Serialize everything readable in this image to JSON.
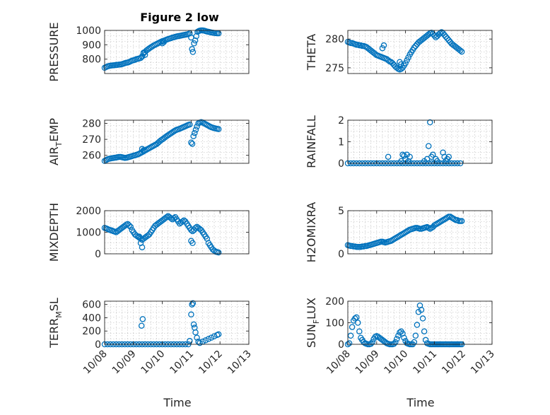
{
  "figure": {
    "title": "Figure 2 low",
    "x_axis_label": "Time",
    "x_tick_labels": [
      "10/08",
      "10/09",
      "10/10",
      "10/11",
      "10/12",
      "10/13"
    ]
  },
  "colors": {
    "marker": "#0072bd",
    "axes": "#262626",
    "grid": "#b8b8b8"
  },
  "chart_data": [
    {
      "type": "scatter",
      "ylabel": "PRESSURE",
      "ylabel_sub": "",
      "ylabel_tail": "",
      "ylim": [
        700,
        1000
      ],
      "yticks": [
        800,
        900,
        1000
      ],
      "xlim": [
        0,
        5
      ],
      "grid": true,
      "marker": "o",
      "x": [
        0.0,
        0.05,
        0.1,
        0.15,
        0.2,
        0.25,
        0.3,
        0.35,
        0.4,
        0.45,
        0.5,
        0.55,
        0.6,
        0.65,
        0.7,
        0.75,
        0.8,
        0.85,
        0.9,
        0.95,
        1.0,
        1.05,
        1.1,
        1.15,
        1.2,
        1.25,
        1.3,
        1.35,
        1.4,
        1.45,
        1.5,
        1.55,
        1.6,
        1.65,
        1.7,
        1.75,
        1.8,
        1.85,
        1.9,
        1.95,
        2.0,
        2.05,
        2.1,
        2.15,
        2.2,
        2.25,
        2.3,
        2.35,
        2.4,
        2.45,
        2.5,
        2.55,
        2.6,
        2.65,
        2.7,
        2.75,
        2.8,
        2.85,
        2.9,
        2.95,
        3.0,
        3.03,
        3.06,
        3.1,
        3.14,
        3.18,
        3.22,
        3.26,
        3.3,
        3.35,
        3.4,
        3.45,
        3.5,
        3.55,
        3.6,
        3.65,
        3.7,
        3.75,
        3.8,
        3.85,
        3.9,
        3.95,
        1.3,
        1.35,
        1.4,
        2.05,
        2.0
      ],
      "y": [
        740,
        745,
        750,
        752,
        755,
        756,
        757,
        758,
        760,
        760,
        762,
        763,
        765,
        768,
        772,
        775,
        776,
        780,
        785,
        790,
        792,
        795,
        800,
        802,
        805,
        808,
        818,
        840,
        850,
        860,
        868,
        875,
        882,
        888,
        895,
        900,
        905,
        910,
        915,
        920,
        925,
        928,
        932,
        936,
        940,
        943,
        946,
        950,
        952,
        955,
        958,
        960,
        962,
        964,
        966,
        968,
        970,
        972,
        975,
        980,
        950,
        870,
        850,
        910,
        930,
        960,
        990,
        995,
        998,
        1000,
        1000,
        998,
        995,
        992,
        990,
        988,
        985,
        984,
        982,
        981,
        980,
        980,
        820,
        845,
        830,
        918,
        910
      ]
    },
    {
      "type": "scatter",
      "ylabel": "THETA",
      "ylabel_sub": "",
      "ylabel_tail": "",
      "ylim": [
        274,
        281.5
      ],
      "yticks": [
        275,
        280
      ],
      "xlim": [
        0,
        5
      ],
      "grid": true,
      "marker": "o",
      "x": [
        0.0,
        0.05,
        0.1,
        0.15,
        0.2,
        0.25,
        0.3,
        0.35,
        0.4,
        0.45,
        0.5,
        0.55,
        0.6,
        0.65,
        0.7,
        0.75,
        0.8,
        0.85,
        0.9,
        0.95,
        1.0,
        1.05,
        1.1,
        1.15,
        1.2,
        1.25,
        1.3,
        1.35,
        1.4,
        1.45,
        1.5,
        1.55,
        1.6,
        1.65,
        1.7,
        1.75,
        1.8,
        1.85,
        1.9,
        1.95,
        2.0,
        2.05,
        2.1,
        2.15,
        2.2,
        2.25,
        2.3,
        2.35,
        2.4,
        2.45,
        2.5,
        2.55,
        2.6,
        2.65,
        2.7,
        2.75,
        2.8,
        2.85,
        2.9,
        2.95,
        3.0,
        3.05,
        3.1,
        3.15,
        3.2,
        3.25,
        3.3,
        3.35,
        3.4,
        3.45,
        3.5,
        3.55,
        3.6,
        3.65,
        3.7,
        3.75,
        3.8,
        3.85,
        3.9,
        3.95,
        1.2,
        1.25,
        1.8,
        1.85
      ],
      "y": [
        279.5,
        279.4,
        279.3,
        279.3,
        279.2,
        279.1,
        279.0,
        279.0,
        278.9,
        278.9,
        278.8,
        278.8,
        278.7,
        278.6,
        278.4,
        278.2,
        278.0,
        277.8,
        277.6,
        277.4,
        277.2,
        277.1,
        277.0,
        276.9,
        276.8,
        276.7,
        276.6,
        276.5,
        276.3,
        276.1,
        276.0,
        275.8,
        275.5,
        275.2,
        275.0,
        274.8,
        274.7,
        274.8,
        275.0,
        275.4,
        275.8,
        276.3,
        276.8,
        277.3,
        277.7,
        278.1,
        278.5,
        278.8,
        279.1,
        279.4,
        279.6,
        279.8,
        280.0,
        280.2,
        280.4,
        280.6,
        280.8,
        281.0,
        281.1,
        280.9,
        280.6,
        280.3,
        280.5,
        280.8,
        281.0,
        281.2,
        281.0,
        280.7,
        280.4,
        280.1,
        279.8,
        279.5,
        279.2,
        279.0,
        278.8,
        278.6,
        278.4,
        278.2,
        278.0,
        277.8,
        278.4,
        278.9,
        276.0,
        275.6
      ]
    },
    {
      "type": "scatter",
      "ylabel": "AIR",
      "ylabel_sub": "T",
      "ylabel_tail": "EMP",
      "ylim": [
        255,
        282
      ],
      "yticks": [
        260,
        270,
        280
      ],
      "xlim": [
        0,
        5
      ],
      "grid": true,
      "marker": "o",
      "x": [
        0.0,
        0.05,
        0.1,
        0.15,
        0.2,
        0.25,
        0.3,
        0.35,
        0.4,
        0.45,
        0.5,
        0.55,
        0.6,
        0.65,
        0.7,
        0.75,
        0.8,
        0.85,
        0.9,
        0.95,
        1.0,
        1.05,
        1.1,
        1.15,
        1.2,
        1.25,
        1.3,
        1.35,
        1.4,
        1.45,
        1.5,
        1.55,
        1.6,
        1.65,
        1.7,
        1.75,
        1.8,
        1.85,
        1.9,
        1.95,
        2.0,
        2.05,
        2.1,
        2.15,
        2.2,
        2.25,
        2.3,
        2.35,
        2.4,
        2.45,
        2.5,
        2.55,
        2.6,
        2.65,
        2.7,
        2.75,
        2.8,
        2.85,
        2.9,
        2.95,
        3.0,
        3.04,
        3.08,
        3.12,
        3.16,
        3.2,
        3.25,
        3.3,
        3.35,
        3.4,
        3.45,
        3.5,
        3.55,
        3.6,
        3.65,
        3.7,
        3.75,
        3.8,
        3.85,
        3.9,
        3.95,
        1.3,
        1.35
      ],
      "y": [
        256.5,
        257.0,
        257.5,
        257.8,
        258.0,
        258.2,
        258.3,
        258.5,
        258.6,
        258.8,
        259.0,
        259.0,
        258.8,
        258.6,
        258.4,
        258.5,
        258.7,
        259.0,
        259.2,
        259.5,
        259.8,
        260.0,
        260.3,
        260.6,
        261.0,
        261.5,
        262.0,
        262.5,
        263.0,
        263.5,
        264.0,
        264.5,
        265.0,
        265.5,
        266.0,
        266.5,
        267.0,
        267.8,
        268.6,
        269.4,
        270.0,
        270.6,
        271.3,
        272.0,
        272.6,
        273.2,
        273.8,
        274.4,
        275.0,
        275.6,
        276.0,
        276.3,
        276.6,
        277.0,
        277.4,
        277.8,
        278.2,
        278.6,
        279.0,
        279.3,
        268.0,
        267.2,
        272.0,
        274.0,
        276.0,
        278.0,
        280.0,
        280.5,
        280.8,
        280.5,
        280.0,
        279.5,
        279.0,
        278.5,
        278.0,
        277.6,
        277.3,
        277.0,
        276.8,
        276.6,
        276.4,
        264.0,
        263.2
      ]
    },
    {
      "type": "scatter",
      "ylabel": "RAINFALL",
      "ylabel_sub": "",
      "ylabel_tail": "",
      "ylim": [
        0,
        2
      ],
      "yticks": [
        0,
        1,
        2
      ],
      "xlim": [
        0,
        5
      ],
      "grid": true,
      "marker": "o",
      "x": [
        0.0,
        0.1,
        0.2,
        0.3,
        0.4,
        0.5,
        0.6,
        0.7,
        0.8,
        0.9,
        1.0,
        1.1,
        1.2,
        1.3,
        1.4,
        1.5,
        1.6,
        1.7,
        1.8,
        1.9,
        2.0,
        2.1,
        2.2,
        2.3,
        2.4,
        2.5,
        2.6,
        2.7,
        2.8,
        2.9,
        3.0,
        3.1,
        3.2,
        3.3,
        3.4,
        3.5,
        3.6,
        3.7,
        3.8,
        3.9,
        1.4,
        1.85,
        1.9,
        1.95,
        2.05,
        2.1,
        2.0,
        2.15,
        2.65,
        2.75,
        2.8,
        2.85,
        2.9,
        2.95,
        3.05,
        3.1,
        3.3,
        3.35,
        3.4,
        3.45,
        3.5
      ],
      "y": [
        0,
        0,
        0,
        0,
        0,
        0,
        0,
        0,
        0,
        0,
        0,
        0,
        0,
        0,
        0,
        0,
        0,
        0,
        0,
        0,
        0,
        0,
        0,
        0,
        0,
        0,
        0,
        0,
        0,
        0,
        0,
        0,
        0,
        0,
        0,
        0,
        0,
        0,
        0,
        0,
        0.3,
        0.1,
        0.4,
        0.35,
        0.4,
        0.1,
        0.2,
        0.3,
        0.1,
        0.2,
        0.8,
        1.9,
        0.3,
        0.4,
        0.2,
        0.1,
        0.5,
        0.3,
        0.1,
        0.2,
        0.3
      ]
    },
    {
      "type": "scatter",
      "ylabel": "MIXDEPTH",
      "ylabel_sub": "",
      "ylabel_tail": "",
      "ylim": [
        0,
        2000
      ],
      "yticks": [
        0,
        1000,
        2000
      ],
      "xlim": [
        0,
        5
      ],
      "grid": true,
      "marker": "o",
      "x": [
        0.0,
        0.05,
        0.1,
        0.15,
        0.2,
        0.25,
        0.3,
        0.35,
        0.4,
        0.45,
        0.5,
        0.55,
        0.6,
        0.65,
        0.7,
        0.75,
        0.8,
        0.85,
        0.9,
        0.95,
        1.0,
        1.05,
        1.1,
        1.15,
        1.2,
        1.25,
        1.3,
        1.35,
        1.4,
        1.45,
        1.5,
        1.55,
        1.6,
        1.65,
        1.7,
        1.75,
        1.8,
        1.85,
        1.9,
        1.95,
        2.0,
        2.05,
        2.1,
        2.15,
        2.2,
        2.25,
        2.3,
        2.35,
        2.4,
        2.45,
        2.5,
        2.55,
        2.6,
        2.65,
        2.7,
        2.75,
        2.8,
        2.85,
        2.9,
        2.95,
        3.0,
        3.05,
        3.1,
        3.15,
        3.2,
        3.25,
        3.3,
        3.35,
        3.4,
        3.45,
        3.5,
        3.55,
        3.6,
        3.65,
        3.7,
        3.75,
        3.8,
        3.85,
        3.9,
        3.95,
        1.2,
        1.25,
        1.3,
        3.0,
        3.05
      ],
      "y": [
        1200,
        1180,
        1150,
        1120,
        1100,
        1080,
        1050,
        1030,
        1000,
        1050,
        1100,
        1150,
        1200,
        1250,
        1300,
        1350,
        1380,
        1320,
        1250,
        1100,
        1000,
        900,
        850,
        800,
        750,
        700,
        650,
        700,
        750,
        800,
        850,
        900,
        1000,
        1100,
        1200,
        1300,
        1350,
        1400,
        1450,
        1500,
        1550,
        1600,
        1650,
        1700,
        1750,
        1700,
        1650,
        1600,
        1650,
        1700,
        1600,
        1500,
        1400,
        1450,
        1500,
        1550,
        1500,
        1400,
        1300,
        1200,
        1100,
        1050,
        1100,
        1200,
        1250,
        1200,
        1150,
        1100,
        1000,
        900,
        800,
        700,
        500,
        400,
        300,
        200,
        150,
        100,
        80,
        60,
        800,
        500,
        300,
        600,
        500
      ]
    },
    {
      "type": "scatter",
      "ylabel": "H2OMIXRA",
      "ylabel_sub": "",
      "ylabel_tail": "",
      "ylim": [
        0,
        5
      ],
      "yticks": [
        0,
        5
      ],
      "xlim": [
        0,
        5
      ],
      "grid": true,
      "marker": "o",
      "x": [
        0.0,
        0.05,
        0.1,
        0.15,
        0.2,
        0.25,
        0.3,
        0.35,
        0.4,
        0.45,
        0.5,
        0.55,
        0.6,
        0.65,
        0.7,
        0.75,
        0.8,
        0.85,
        0.9,
        0.95,
        1.0,
        1.05,
        1.1,
        1.15,
        1.2,
        1.25,
        1.3,
        1.35,
        1.4,
        1.45,
        1.5,
        1.55,
        1.6,
        1.65,
        1.7,
        1.75,
        1.8,
        1.85,
        1.9,
        1.95,
        2.0,
        2.05,
        2.1,
        2.15,
        2.2,
        2.25,
        2.3,
        2.35,
        2.4,
        2.45,
        2.5,
        2.55,
        2.6,
        2.65,
        2.7,
        2.75,
        2.8,
        2.85,
        2.9,
        2.95,
        3.0,
        3.05,
        3.1,
        3.15,
        3.2,
        3.25,
        3.3,
        3.35,
        3.4,
        3.45,
        3.5,
        3.55,
        3.6,
        3.65,
        3.7,
        3.75,
        3.8,
        3.85,
        3.9,
        3.95
      ],
      "y": [
        1.0,
        0.95,
        0.9,
        0.9,
        0.85,
        0.85,
        0.8,
        0.8,
        0.8,
        0.8,
        0.85,
        0.85,
        0.9,
        0.9,
        0.95,
        1.0,
        1.05,
        1.1,
        1.15,
        1.2,
        1.25,
        1.3,
        1.35,
        1.4,
        1.4,
        1.35,
        1.3,
        1.35,
        1.4,
        1.45,
        1.5,
        1.6,
        1.7,
        1.8,
        1.9,
        2.0,
        2.1,
        2.2,
        2.3,
        2.4,
        2.5,
        2.6,
        2.7,
        2.8,
        2.85,
        2.9,
        2.95,
        3.0,
        3.0,
        2.95,
        2.9,
        2.9,
        2.95,
        3.0,
        3.05,
        3.1,
        3.0,
        2.9,
        3.0,
        3.1,
        3.3,
        3.4,
        3.5,
        3.6,
        3.7,
        3.8,
        3.9,
        4.0,
        4.1,
        4.2,
        4.3,
        4.3,
        4.2,
        4.1,
        4.0,
        3.9,
        3.9,
        3.8,
        3.8,
        3.8
      ]
    },
    {
      "type": "scatter",
      "ylabel": "TERR",
      "ylabel_sub": "M",
      "ylabel_tail": "SL",
      "ylim": [
        0,
        650
      ],
      "yticks": [
        0,
        200,
        400,
        600
      ],
      "xlim": [
        0,
        5
      ],
      "grid": true,
      "marker": "o",
      "x": [
        0.0,
        0.1,
        0.2,
        0.3,
        0.4,
        0.5,
        0.6,
        0.7,
        0.8,
        0.9,
        1.0,
        1.1,
        1.2,
        1.3,
        1.4,
        1.5,
        1.6,
        1.7,
        1.8,
        1.9,
        2.0,
        2.1,
        2.2,
        2.3,
        2.4,
        2.5,
        2.6,
        2.7,
        2.8,
        2.9,
        2.95,
        1.28,
        1.32,
        3.0,
        3.03,
        3.06,
        3.09,
        3.12,
        3.15,
        3.2,
        3.25,
        3.3,
        3.4,
        3.5,
        3.6,
        3.7,
        3.8,
        3.9,
        3.95
      ],
      "y": [
        0,
        0,
        0,
        0,
        0,
        0,
        0,
        0,
        0,
        0,
        0,
        0,
        0,
        0,
        0,
        0,
        0,
        0,
        0,
        0,
        0,
        0,
        0,
        0,
        0,
        0,
        0,
        0,
        0,
        0,
        50,
        280,
        380,
        450,
        600,
        620,
        300,
        250,
        180,
        100,
        40,
        20,
        40,
        60,
        80,
        100,
        120,
        140,
        150
      ]
    },
    {
      "type": "scatter",
      "ylabel": "SUN",
      "ylabel_sub": "F",
      "ylabel_tail": "LUX",
      "ylim": [
        0,
        200
      ],
      "yticks": [
        0,
        100,
        200
      ],
      "xlim": [
        0,
        5
      ],
      "grid": true,
      "marker": "o",
      "x": [
        0.0,
        0.05,
        0.1,
        0.15,
        0.2,
        0.25,
        0.3,
        0.35,
        0.4,
        0.45,
        0.5,
        0.55,
        0.6,
        0.65,
        0.7,
        0.75,
        0.8,
        0.85,
        0.9,
        0.95,
        1.0,
        1.05,
        1.1,
        1.15,
        1.2,
        1.25,
        1.3,
        1.35,
        1.4,
        1.45,
        1.5,
        1.55,
        1.6,
        1.65,
        1.7,
        1.75,
        1.8,
        1.85,
        1.9,
        1.95,
        2.0,
        2.05,
        2.1,
        2.15,
        2.2,
        2.25,
        2.3,
        2.35,
        2.4,
        2.45,
        2.5,
        2.55,
        2.6,
        2.65,
        2.7,
        2.75,
        2.8,
        2.85,
        2.9,
        2.95,
        3.0,
        3.05,
        3.1,
        3.15,
        3.2,
        3.25,
        3.3,
        3.35,
        3.4,
        3.45,
        3.5,
        3.55,
        3.6,
        3.65,
        3.7,
        3.75,
        3.8,
        3.85,
        3.9,
        3.95
      ],
      "y": [
        0,
        5,
        40,
        80,
        110,
        120,
        125,
        100,
        60,
        30,
        20,
        10,
        5,
        2,
        0,
        0,
        2,
        10,
        25,
        35,
        38,
        35,
        30,
        25,
        20,
        15,
        10,
        5,
        2,
        0,
        0,
        0,
        2,
        10,
        25,
        40,
        55,
        60,
        50,
        30,
        15,
        5,
        2,
        0,
        0,
        0,
        10,
        40,
        90,
        150,
        180,
        160,
        120,
        60,
        20,
        5,
        2,
        0,
        0,
        0,
        0,
        0,
        0,
        0,
        0,
        0,
        0,
        0,
        0,
        0,
        0,
        0,
        0,
        0,
        0,
        0,
        0,
        0,
        0,
        0
      ]
    }
  ]
}
